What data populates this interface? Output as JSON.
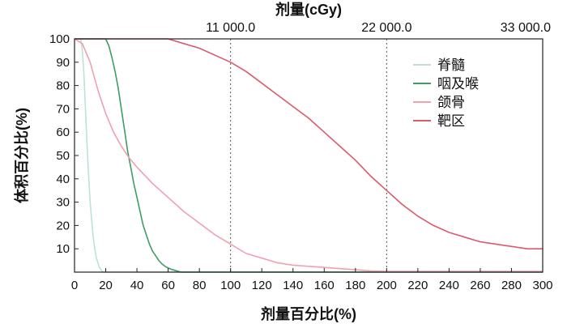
{
  "chart_data": {
    "type": "line",
    "xlabel": "剂量百分比(%)",
    "ylabel": "体积百分比(%)",
    "top_axis_label": "剂量(cGy)",
    "top_ticks": [
      "11 000.0",
      "22 000.0",
      "33 000.0"
    ],
    "xlim": [
      0,
      300
    ],
    "ylim": [
      0,
      100
    ],
    "xticks": [
      0,
      20,
      40,
      60,
      80,
      100,
      120,
      140,
      160,
      180,
      200,
      220,
      240,
      260,
      280,
      300
    ],
    "yticks": [
      10,
      20,
      30,
      40,
      50,
      60,
      70,
      80,
      90,
      100
    ],
    "vertical_reference_lines": [
      100,
      200
    ],
    "legend": "top-right",
    "series": [
      {
        "name": "脊髓",
        "color": "#bde3cf",
        "points": [
          [
            0,
            100
          ],
          [
            4,
            100
          ],
          [
            5,
            95
          ],
          [
            6,
            85
          ],
          [
            7,
            70
          ],
          [
            8,
            55
          ],
          [
            9,
            42
          ],
          [
            10,
            30
          ],
          [
            11,
            22
          ],
          [
            12,
            15
          ],
          [
            13,
            10
          ],
          [
            14,
            6
          ],
          [
            15,
            4
          ],
          [
            16,
            2
          ],
          [
            17,
            1
          ],
          [
            18,
            0
          ],
          [
            300,
            0
          ]
        ]
      },
      {
        "name": "咽及喉",
        "color": "#3d9e62",
        "points": [
          [
            0,
            100
          ],
          [
            20,
            100
          ],
          [
            22,
            97
          ],
          [
            24,
            92
          ],
          [
            26,
            86
          ],
          [
            28,
            79
          ],
          [
            30,
            70
          ],
          [
            32,
            61
          ],
          [
            34,
            52
          ],
          [
            36,
            45
          ],
          [
            38,
            38
          ],
          [
            40,
            32
          ],
          [
            42,
            26
          ],
          [
            44,
            20
          ],
          [
            46,
            16
          ],
          [
            48,
            12
          ],
          [
            50,
            9
          ],
          [
            52,
            7
          ],
          [
            54,
            5
          ],
          [
            56,
            3.5
          ],
          [
            58,
            2.5
          ],
          [
            60,
            1.8
          ],
          [
            62,
            1.2
          ],
          [
            64,
            0.8
          ],
          [
            66,
            0.4
          ],
          [
            68,
            0
          ],
          [
            300,
            0
          ]
        ]
      },
      {
        "name": "颌骨",
        "color": "#f0a0b0",
        "points": [
          [
            0,
            100
          ],
          [
            5,
            98
          ],
          [
            10,
            90
          ],
          [
            15,
            78
          ],
          [
            20,
            68
          ],
          [
            25,
            60
          ],
          [
            30,
            54
          ],
          [
            35,
            49
          ],
          [
            40,
            45
          ],
          [
            50,
            38
          ],
          [
            60,
            32
          ],
          [
            70,
            26
          ],
          [
            80,
            21
          ],
          [
            90,
            16
          ],
          [
            100,
            12
          ],
          [
            110,
            8
          ],
          [
            120,
            6
          ],
          [
            130,
            4
          ],
          [
            140,
            3
          ],
          [
            160,
            2
          ],
          [
            180,
            1
          ],
          [
            190,
            0.5
          ],
          [
            200,
            0.3
          ],
          [
            300,
            0.3
          ]
        ]
      },
      {
        "name": "靶区",
        "color": "#dd5a6b",
        "points": [
          [
            0,
            100
          ],
          [
            60,
            100
          ],
          [
            70,
            98
          ],
          [
            80,
            96
          ],
          [
            90,
            93
          ],
          [
            100,
            90
          ],
          [
            110,
            86
          ],
          [
            120,
            81
          ],
          [
            130,
            76
          ],
          [
            140,
            71
          ],
          [
            150,
            66
          ],
          [
            160,
            60
          ],
          [
            170,
            54
          ],
          [
            180,
            48
          ],
          [
            190,
            41
          ],
          [
            200,
            35
          ],
          [
            210,
            29
          ],
          [
            220,
            24
          ],
          [
            230,
            20
          ],
          [
            240,
            17
          ],
          [
            250,
            15
          ],
          [
            260,
            13
          ],
          [
            270,
            12
          ],
          [
            280,
            11
          ],
          [
            290,
            10
          ],
          [
            300,
            10
          ]
        ]
      }
    ]
  }
}
